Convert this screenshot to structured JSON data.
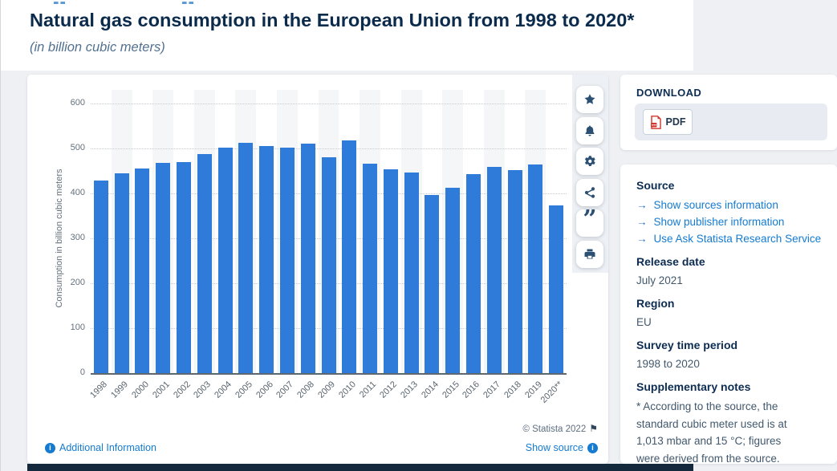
{
  "header": {
    "title": "Natural gas consumption in the European Union from 1998 to 2020*",
    "subtitle": "(in billion cubic meters)"
  },
  "chart_data": {
    "type": "bar",
    "title": "Natural gas consumption in the European Union from 1998 to 2020*",
    "ylabel": "Consumption in billion cubic meters",
    "xlabel": "",
    "ylim": [
      0,
      600
    ],
    "yticks": [
      0,
      100,
      200,
      300,
      400,
      500,
      600
    ],
    "grid": true,
    "bar_color": "#2e7bd9",
    "band_color": "#f5f6f8",
    "categories": [
      "1998",
      "1999",
      "2000",
      "2001",
      "2002",
      "2003",
      "2004",
      "2005",
      "2006",
      "2007",
      "2008",
      "2009",
      "2010",
      "2011",
      "2012",
      "2013",
      "2014",
      "2015",
      "2016",
      "2017",
      "2018",
      "2019",
      "2020**"
    ],
    "values": [
      429,
      444,
      455,
      467,
      469,
      488,
      501,
      513,
      506,
      501,
      511,
      480,
      517,
      466,
      454,
      446,
      397,
      413,
      443,
      459,
      452,
      464,
      374
    ]
  },
  "chart_card": {
    "copyright": "© Statista 2022",
    "flag_icon": "⚑",
    "additional_information": "Additional Information",
    "show_source": "Show source"
  },
  "toolbar": {
    "buttons": [
      "favorite",
      "notifications",
      "settings",
      "share",
      "cite",
      "print"
    ]
  },
  "download_panel": {
    "heading": "DOWNLOAD",
    "pdf_label": "PDF"
  },
  "details_panel": {
    "source_heading": "Source",
    "link_arrow": "→",
    "source_links": [
      "Show sources information",
      "Show publisher information",
      "Use Ask Statista Research Service"
    ],
    "release_heading": "Release date",
    "release_value": "July 2021",
    "region_heading": "Region",
    "region_value": "EU",
    "survey_heading": "Survey time period",
    "survey_value": "1998 to 2020",
    "notes_heading": "Supplementary notes",
    "notes_lines": [
      "* According to the source, the",
      "standard cubic meter used is at",
      "1,013 mbar and 15 °C; figures",
      "were derived from the source."
    ]
  }
}
